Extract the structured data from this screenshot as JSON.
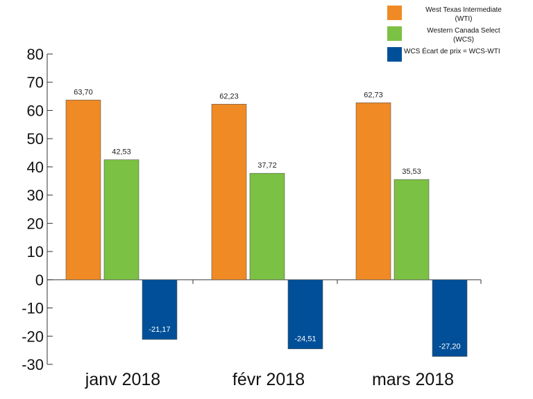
{
  "chart_data": {
    "type": "bar",
    "categories": [
      "janv 2018",
      "févr 2018",
      "mars 2018"
    ],
    "series": [
      {
        "name": "West Texas Intermediate (WTI)",
        "color": "#f08a24",
        "values": [
          63.7,
          62.23,
          62.73
        ],
        "labels": [
          "63,70",
          "62,23",
          "62,73"
        ]
      },
      {
        "name": "Western Canada Select (WCS)",
        "color": "#7bc143",
        "values": [
          42.53,
          37.72,
          35.53
        ],
        "labels": [
          "42,53",
          "37,72",
          "35,53"
        ]
      },
      {
        "name": "WCS Écart de prix = WCS-WTI",
        "color": "#004f98",
        "values": [
          -21.17,
          -24.51,
          -27.2
        ],
        "labels": [
          "-21,17",
          "-24,51",
          "-27,20"
        ]
      }
    ],
    "yticks": [
      "80",
      "70",
      "60",
      "50",
      "40",
      "30",
      "20",
      "10",
      "0",
      "-10",
      "-20",
      "-30"
    ],
    "ylim": [
      -30,
      80
    ],
    "legend_position": "top-right",
    "grid": false
  },
  "legend": {
    "wti_line1": "West Texas Intermediate",
    "wti_line2": "(WTI)",
    "wcs_line1": "Western Canada Select",
    "wcs_line2": "(WCS)",
    "gap_line1": "WCS Écart de prix = WCS-WTI"
  }
}
